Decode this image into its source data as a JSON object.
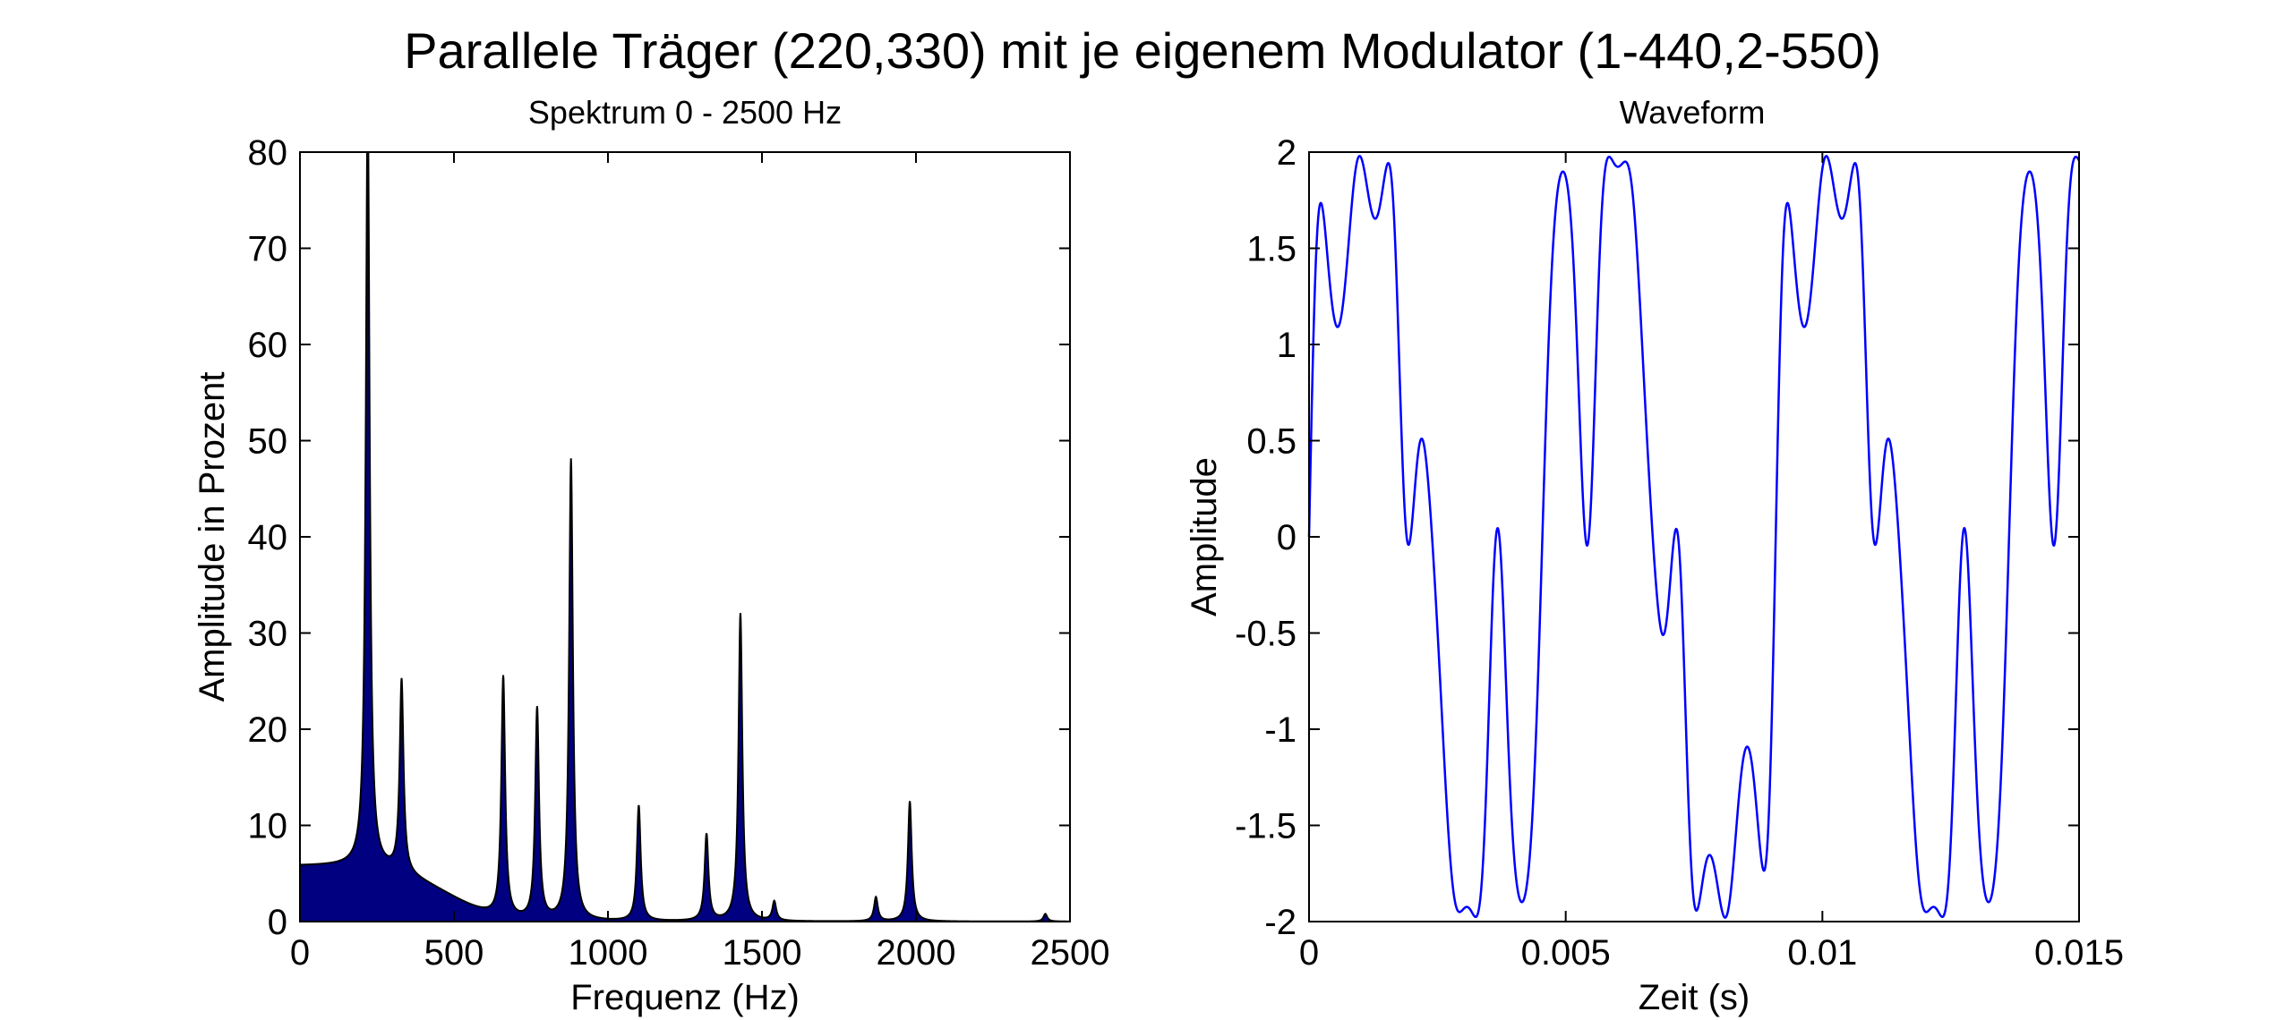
{
  "figure_title": "Parallele Träger (220,330) mit je eigenem Modulator (1-440,2-550)",
  "chart_data": [
    {
      "type": "area",
      "title": "Spektrum 0 - 2500 Hz",
      "xlabel": "Frequenz (Hz)",
      "ylabel": "Amplitude in Prozent",
      "xlim": [
        0,
        2500
      ],
      "ylim": [
        0,
        80
      ],
      "xticks": [
        "0",
        "500",
        "1000",
        "1500",
        "2000",
        "2500"
      ],
      "yticks": [
        "0",
        "10",
        "20",
        "30",
        "40",
        "50",
        "60",
        "70",
        "80"
      ],
      "fill_color": "#000080",
      "edge_color": "#000000",
      "baseline": 5.8,
      "peaks": [
        {
          "x": 220,
          "y": 80
        },
        {
          "x": 330,
          "y": 20
        },
        {
          "x": 660,
          "y": 25
        },
        {
          "x": 770,
          "y": 22
        },
        {
          "x": 880,
          "y": 48
        },
        {
          "x": 1100,
          "y": 12
        },
        {
          "x": 1320,
          "y": 9
        },
        {
          "x": 1430,
          "y": 32
        },
        {
          "x": 1540,
          "y": 2
        },
        {
          "x": 1870,
          "y": 2.5
        },
        {
          "x": 1980,
          "y": 12.5
        },
        {
          "x": 2420,
          "y": 0.8
        }
      ]
    },
    {
      "type": "line",
      "title": "Waveform",
      "xlabel": "Zeit (s)",
      "ylabel": "Amplitude",
      "xlim": [
        0,
        0.015
      ],
      "ylim": [
        -2,
        2
      ],
      "xticks": [
        "0",
        "0.005",
        "0.01",
        "0.015"
      ],
      "yticks": [
        "-2",
        "-1.5",
        "-1",
        "-0.5",
        "0",
        "0.5",
        "1",
        "1.5",
        "2"
      ],
      "line_color": "#0000ff",
      "formula": "sin(2π·220·t + 1·sin(2π·440·t)) + sin(2π·330·t + 2·sin(2π·550·t))"
    }
  ]
}
